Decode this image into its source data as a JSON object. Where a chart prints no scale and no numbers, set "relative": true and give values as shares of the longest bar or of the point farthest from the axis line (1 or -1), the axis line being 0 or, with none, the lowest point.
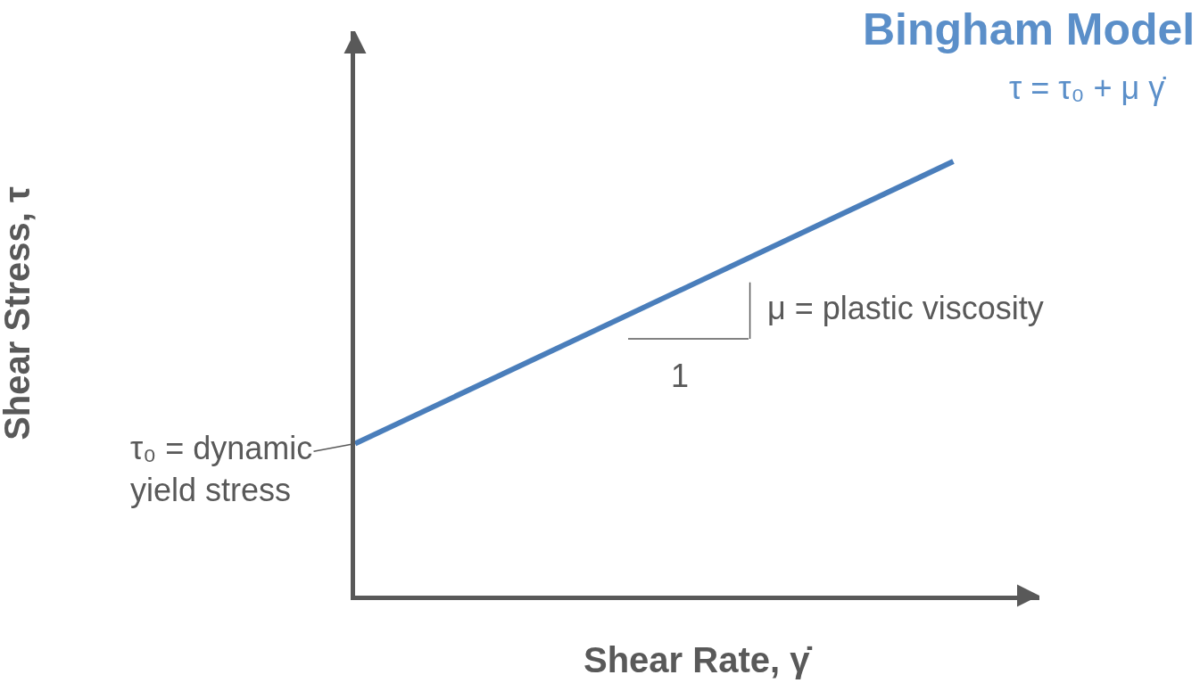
{
  "chart_data": {
    "type": "line",
    "title": "Bingham Model",
    "xlabel": "Shear Rate, γ̇",
    "ylabel": "Shear Stress, τ",
    "relative": true,
    "categories": [
      null,
      null
    ],
    "series": [
      {
        "color": "#4a7ebb",
        "values": [
          0.35,
          1
        ]
      }
    ],
    "annotations": [
      "τ = τ₀ + μ γ̇",
      "μ = plastic viscosity",
      "1",
      "τ₀ = dynamic\nyield stress"
    ],
    "grid": false,
    "legend": false,
    "marker": "none",
    "line_style": "solid"
  }
}
